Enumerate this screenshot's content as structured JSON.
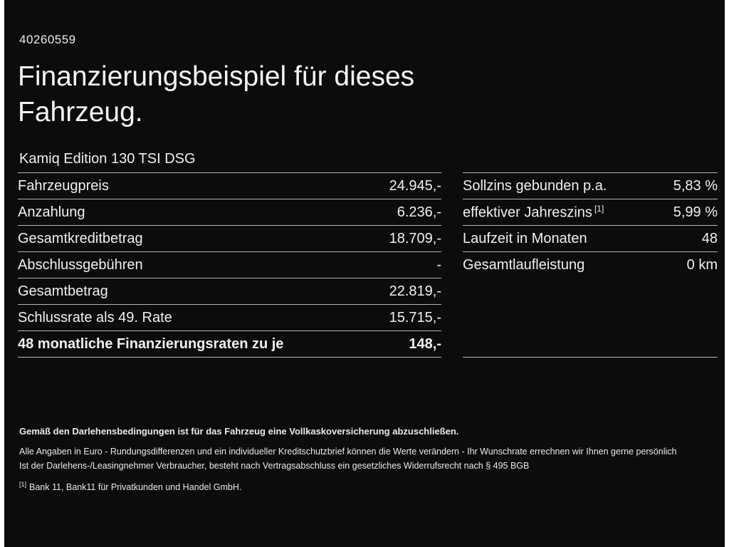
{
  "page": {
    "id_number": "40260559",
    "title_line1": "Finanzierungsbeispiel für dieses",
    "title_line2": "Fahrzeug.",
    "subtitle": "Kamiq Edition 130 TSI DSG"
  },
  "left_table": {
    "rows": [
      {
        "label": "Fahrzeugpreis",
        "value": "24.945,-"
      },
      {
        "label": "Anzahlung",
        "value": "6.236,-"
      },
      {
        "label": "Gesamtkreditbetrag",
        "value": "18.709,-"
      },
      {
        "label": "Abschlussgebühren",
        "value": "-"
      },
      {
        "label": "Gesamtbetrag",
        "value": "22.819,-"
      },
      {
        "label": "Schlussrate als 49. Rate",
        "value": "15.715,-"
      },
      {
        "label": "48 monatliche Finanzierungsraten zu je",
        "value": "148,-"
      }
    ]
  },
  "right_table": {
    "rows": [
      {
        "label": "Sollzins gebunden p.a.",
        "value": "5,83 %"
      },
      {
        "label": "effektiver Jahreszins",
        "sup": "[1]",
        "value": "5,99 %"
      },
      {
        "label": "Laufzeit in Monaten",
        "value": "48"
      },
      {
        "label": "Gesamtlaufleistung",
        "value": "0 km"
      }
    ]
  },
  "footnotes": {
    "bold_note": "Gemäß den Darlehensbedingungen ist für das Fahrzeug eine Vollkaskoversicherung abzuschließen.",
    "note1": "Alle Angaben in Euro - Rundungsdifferenzen und ein individueller Kreditschutzbrief können die Werte verändern - Ihr Wunschrate errechnen wir Ihnen gerne persönlich",
    "note2": "Ist der Darlehens-/Leasingnehmer Verbraucher, besteht nach Vertragsabschluss ein gesetzliches Widerrufsrecht nach § 495 BGB",
    "note3_sup": "[1]",
    "note3": "Bank 11, Bank11 für Privatkunden und Handel GmbH."
  },
  "colors": {
    "background": "#0c0c0c",
    "text": "#f2f2f2",
    "divider": "#b5b5b5",
    "edge": "#ffffff"
  }
}
